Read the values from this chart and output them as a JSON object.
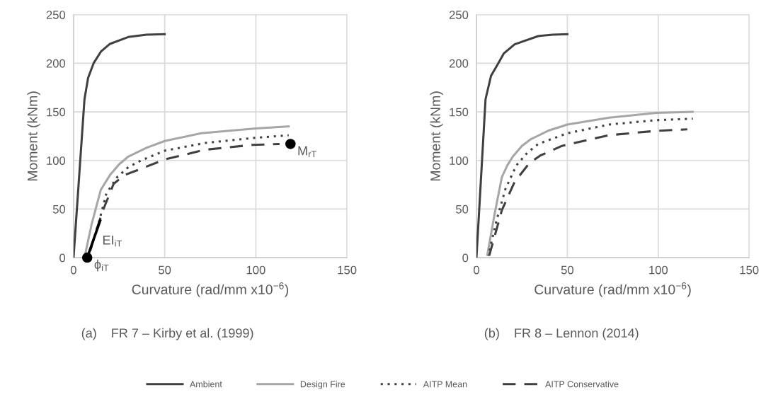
{
  "chart_data": [
    {
      "type": "line",
      "xlabel": "Curvature (rad/mm x10$^{−6}$)",
      "ylabel": "Moment (kNm)",
      "xlim": [
        0,
        150
      ],
      "ylim": [
        0,
        250
      ],
      "xticks": [
        0,
        50,
        100,
        150
      ],
      "yticks": [
        0,
        50,
        100,
        150,
        200,
        250
      ],
      "grid": true,
      "legend": "bottom",
      "annotations": [
        "(a)    FR 7 – Kirby et al. (1999)",
        {
          "text": "EI$_{iT}$",
          "x": 12,
          "y": 25
        },
        {
          "text": "ϕ$_{iT}$",
          "x": 7.5,
          "y": 0
        },
        {
          "text": "M$_{rT}$",
          "x": 119,
          "y": 117
        }
      ],
      "series": [
        {
          "name": "Ambient",
          "color": "#404040",
          "line_style": "solid",
          "x": [
            0,
            6,
            8,
            11,
            15,
            20,
            30,
            40,
            50
          ],
          "values": [
            0,
            163,
            185,
            200,
            212,
            220,
            227,
            229.5,
            230
          ]
        },
        {
          "name": "Design Fire",
          "color": "#a6a6a6",
          "line_style": "solid",
          "x": [
            6,
            10,
            15,
            20,
            25,
            30,
            40,
            50,
            70,
            100,
            118
          ],
          "values": [
            0,
            35,
            70,
            85,
            96,
            104,
            113,
            120,
            128,
            133,
            135
          ]
        },
        {
          "name": "AITP Mean",
          "color": "#404040",
          "line_style": "dotted",
          "x": [
            8,
            14,
            18,
            24,
            30,
            37,
            50,
            72,
            98,
            118
          ],
          "values": [
            0,
            37,
            66,
            83,
            93,
            100,
            110,
            118,
            123,
            126
          ]
        },
        {
          "name": "AITP Conservative",
          "color": "#404040",
          "line_style": "dashed",
          "x": [
            8,
            12,
            16,
            22,
            28,
            35,
            50,
            72,
            98,
            113
          ],
          "values": [
            0,
            25,
            48,
            76,
            85,
            90,
            101,
            111,
            116,
            117
          ]
        },
        {
          "type": "line",
          "color": "#000000",
          "line_style": "solid",
          "x": [
            7.5,
            14.6
          ],
          "values": [
            0,
            38
          ]
        },
        {
          "type": "scatter",
          "color": "#000000",
          "marker": "circle",
          "x": [
            7.5,
            119
          ],
          "values": [
            0,
            117
          ]
        }
      ]
    },
    {
      "type": "line",
      "xlabel": "Curvature (rad/mm x10$^{−6}$)",
      "ylabel": "Moment (kNm)",
      "xlim": [
        0,
        150
      ],
      "ylim": [
        0,
        250
      ],
      "xticks": [
        0,
        50,
        100,
        150
      ],
      "yticks": [
        0,
        50,
        100,
        150,
        200,
        250
      ],
      "grid": true,
      "annotations": [
        "(b)    FR 8 – Lennon (2014)"
      ],
      "series": [
        {
          "name": "Ambient",
          "color": "#404040",
          "line_style": "solid",
          "x": [
            0,
            5,
            8,
            12,
            15,
            21,
            34,
            42,
            50
          ],
          "values": [
            0,
            163,
            187,
            200,
            210,
            219.5,
            228,
            229.5,
            230
          ]
        },
        {
          "name": "Design Fire",
          "color": "#a6a6a6",
          "line_style": "solid",
          "x": [
            6,
            10,
            14,
            17,
            20,
            25,
            30,
            40,
            50,
            73,
            99,
            119
          ],
          "values": [
            3,
            45,
            83,
            95,
            104,
            115,
            122,
            131,
            137,
            144,
            149,
            150
          ]
        },
        {
          "name": "AITP Mean",
          "color": "#404040",
          "line_style": "dotted",
          "x": [
            6.5,
            11,
            16,
            22,
            28,
            34,
            50,
            73,
            99,
            119
          ],
          "values": [
            2,
            38,
            71,
            95,
            108,
            117,
            128,
            137,
            141.5,
            143
          ]
        },
        {
          "name": "AITP Conservative",
          "color": "#404040",
          "line_style": "dashed",
          "x": [
            7,
            10,
            14,
            21,
            29,
            35,
            47,
            73,
            99,
            116
          ],
          "values": [
            2,
            22,
            49,
            78,
            97,
            105,
            115,
            126,
            130.5,
            132
          ]
        }
      ]
    }
  ]
}
